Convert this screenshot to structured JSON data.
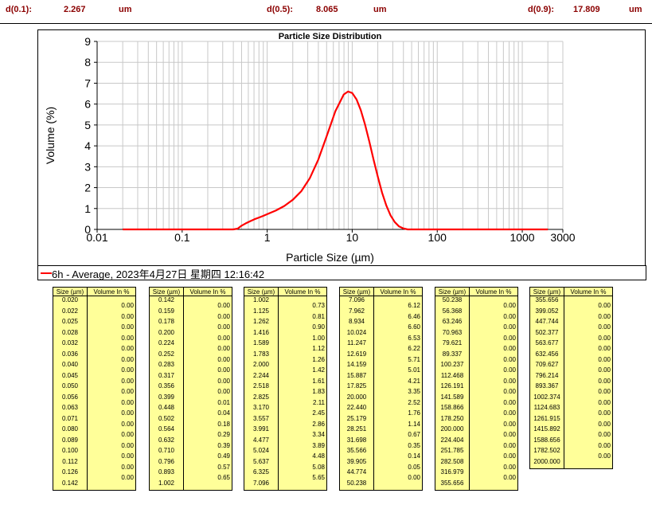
{
  "header": {
    "d10_label": "d(0.1):",
    "d10_value": "2.267",
    "d10_unit": "um",
    "d50_label": "d(0.5):",
    "d50_value": "8.065",
    "d50_unit": "um",
    "d90_label": "d(0.9):",
    "d90_value": "17.809",
    "d90_unit": "um"
  },
  "chart_data": {
    "type": "line",
    "title": "Particle Size Distribution",
    "xlabel": "Particle Size (µm)",
    "ylabel": "Volume (%)",
    "xscale": "log",
    "xlim": [
      0.01,
      3000
    ],
    "ylim": [
      0,
      9
    ],
    "x_ticks": [
      "0.01",
      "0.1",
      "1",
      "10",
      "100",
      "1000",
      "3000"
    ],
    "y_ticks": [
      "0",
      "1",
      "2",
      "3",
      "4",
      "5",
      "6",
      "7",
      "8",
      "9"
    ],
    "grid": true,
    "line_color": "#ff0000",
    "series": [
      {
        "name": "6h - Average, 2023年4月27日 星期四 12:16:42",
        "x": [
          0.02,
          0.1,
          0.4,
          0.45,
          0.5,
          0.56,
          0.63,
          0.71,
          0.8,
          0.9,
          1.0,
          1.26,
          1.59,
          2.0,
          2.52,
          3.17,
          3.99,
          5.02,
          6.33,
          7.96,
          8.93,
          10.02,
          11.25,
          12.62,
          14.16,
          15.89,
          17.83,
          20.0,
          22.44,
          25.18,
          28.25,
          31.7,
          35.57,
          39.91,
          44.77,
          50.24,
          100,
          2000
        ],
        "y": [
          0,
          0,
          0,
          0.04,
          0.18,
          0.29,
          0.39,
          0.49,
          0.57,
          0.65,
          0.73,
          0.9,
          1.12,
          1.42,
          1.83,
          2.45,
          3.34,
          4.48,
          5.65,
          6.46,
          6.6,
          6.53,
          6.22,
          5.71,
          5.01,
          4.21,
          3.35,
          2.52,
          1.76,
          1.14,
          0.67,
          0.35,
          0.14,
          0.05,
          0.0,
          0,
          0,
          0
        ]
      }
    ]
  },
  "legend": {
    "label": "6h - Average, 2023年4月27日 星期四 12:16:42"
  },
  "table": {
    "col_size": "Size (µm)",
    "col_vol": "Volume In %",
    "blocks": [
      {
        "sizes": [
          "0.020",
          "0.022",
          "0.025",
          "0.028",
          "0.032",
          "0.036",
          "0.040",
          "0.045",
          "0.050",
          "0.056",
          "0.063",
          "0.071",
          "0.080",
          "0.089",
          "0.100",
          "0.112",
          "0.126",
          "0.142"
        ],
        "vols": [
          "0.00",
          "0.00",
          "0.00",
          "0.00",
          "0.00",
          "0.00",
          "0.00",
          "0.00",
          "0.00",
          "0.00",
          "0.00",
          "0.00",
          "0.00",
          "0.00",
          "0.00",
          "0.00",
          "0.00"
        ]
      },
      {
        "sizes": [
          "0.142",
          "0.159",
          "0.178",
          "0.200",
          "0.224",
          "0.252",
          "0.283",
          "0.317",
          "0.356",
          "0.399",
          "0.448",
          "0.502",
          "0.564",
          "0.632",
          "0.710",
          "0.796",
          "0.893",
          "1.002"
        ],
        "vols": [
          "0.00",
          "0.00",
          "0.00",
          "0.00",
          "0.00",
          "0.00",
          "0.00",
          "0.00",
          "0.00",
          "0.01",
          "0.04",
          "0.18",
          "0.29",
          "0.39",
          "0.49",
          "0.57",
          "0.65"
        ]
      },
      {
        "sizes": [
          "1.002",
          "1.125",
          "1.262",
          "1.416",
          "1.589",
          "1.783",
          "2.000",
          "2.244",
          "2.518",
          "2.825",
          "3.170",
          "3.557",
          "3.991",
          "4.477",
          "5.024",
          "5.637",
          "6.325",
          "7.096"
        ],
        "vols": [
          "0.73",
          "0.81",
          "0.90",
          "1.00",
          "1.12",
          "1.26",
          "1.42",
          "1.61",
          "1.83",
          "2.11",
          "2.45",
          "2.86",
          "3.34",
          "3.89",
          "4.48",
          "5.08",
          "5.65"
        ]
      },
      {
        "sizes": [
          "7.096",
          "7.962",
          "8.934",
          "10.024",
          "11.247",
          "12.619",
          "14.159",
          "15.887",
          "17.825",
          "20.000",
          "22.440",
          "25.179",
          "28.251",
          "31.698",
          "35.566",
          "39.905",
          "44.774",
          "50.238"
        ],
        "vols": [
          "6.12",
          "6.46",
          "6.60",
          "6.53",
          "6.22",
          "5.71",
          "5.01",
          "4.21",
          "3.35",
          "2.52",
          "1.76",
          "1.14",
          "0.67",
          "0.35",
          "0.14",
          "0.05",
          "0.00"
        ]
      },
      {
        "sizes": [
          "50.238",
          "56.368",
          "63.246",
          "70.963",
          "79.621",
          "89.337",
          "100.237",
          "112.468",
          "126.191",
          "141.589",
          "158.866",
          "178.250",
          "200.000",
          "224.404",
          "251.785",
          "282.508",
          "316.979",
          "355.656"
        ],
        "vols": [
          "0.00",
          "0.00",
          "0.00",
          "0.00",
          "0.00",
          "0.00",
          "0.00",
          "0.00",
          "0.00",
          "0.00",
          "0.00",
          "0.00",
          "0.00",
          "0.00",
          "0.00",
          "0.00",
          "0.00"
        ]
      },
      {
        "sizes": [
          "355.656",
          "399.052",
          "447.744",
          "502.377",
          "563.677",
          "632.456",
          "709.627",
          "796.214",
          "893.367",
          "1002.374",
          "1124.683",
          "1261.915",
          "1415.892",
          "1588.656",
          "1782.502",
          "2000.000"
        ],
        "vols": [
          "0.00",
          "0.00",
          "0.00",
          "0.00",
          "0.00",
          "0.00",
          "0.00",
          "0.00",
          "0.00",
          "0.00",
          "0.00",
          "0.00",
          "0.00",
          "0.00",
          "0.00"
        ]
      }
    ]
  }
}
